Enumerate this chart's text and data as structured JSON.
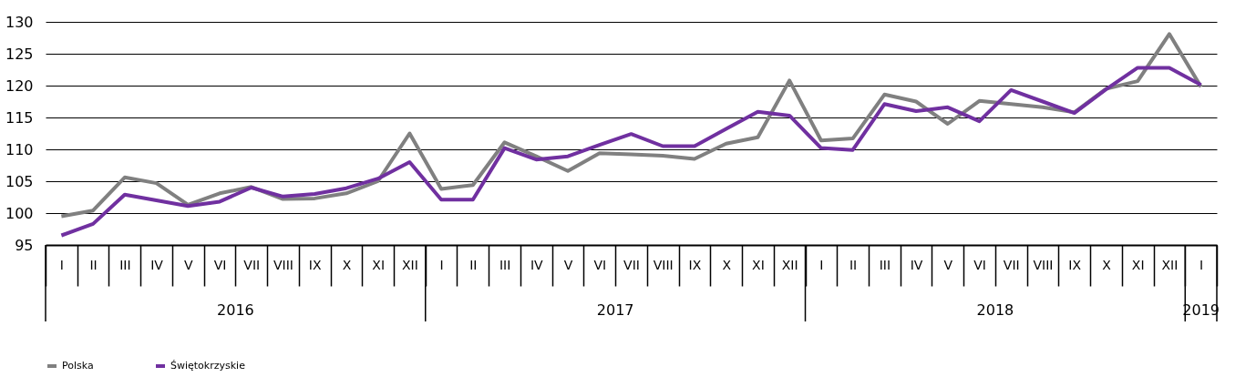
{
  "chart_data": {
    "type": "line",
    "categories": [
      "I",
      "II",
      "III",
      "IV",
      "V",
      "VI",
      "VII",
      "VIII",
      "IX",
      "X",
      "XI",
      "XII",
      "I",
      "II",
      "III",
      "IV",
      "V",
      "VI",
      "VII",
      "VIII",
      "IX",
      "X",
      "XI",
      "XII",
      "I",
      "II",
      "III",
      "IV",
      "V",
      "VI",
      "VII",
      "VIII",
      "IX",
      "X",
      "XI",
      "XII",
      "I"
    ],
    "annotations": [
      "2016",
      "2017",
      "2018",
      "2019"
    ],
    "series": [
      {
        "name": "Polska",
        "color": "#808080",
        "values": [
          99.5,
          100.4,
          105.6,
          104.7,
          101.3,
          103.1,
          104.1,
          102.2,
          102.3,
          103.1,
          105.0,
          112.5,
          103.8,
          104.4,
          111.1,
          108.9,
          106.6,
          109.4,
          109.2,
          109.0,
          108.5,
          110.9,
          111.9,
          120.8,
          111.4,
          111.7,
          118.6,
          117.5,
          114.0,
          117.6,
          117.1,
          116.6,
          115.8,
          119.5,
          120.7,
          128.1,
          119.8
        ]
      },
      {
        "name": "Świętokrzyskie",
        "color": "#7030a0",
        "values": [
          96.5,
          98.3,
          102.9,
          102.0,
          101.1,
          101.8,
          104.0,
          102.6,
          103.0,
          103.9,
          105.4,
          108.0,
          102.1,
          102.1,
          110.2,
          108.4,
          108.9,
          110.7,
          112.4,
          110.5,
          110.5,
          113.2,
          115.9,
          115.3,
          110.2,
          109.9,
          117.1,
          116.0,
          116.6,
          114.4,
          119.3,
          117.5,
          115.7,
          119.4,
          122.8,
          122.8,
          120.1
        ]
      }
    ],
    "ylim": [
      95,
      130
    ],
    "yticks": [
      95,
      100,
      105,
      110,
      115,
      120,
      125,
      130
    ],
    "grid": "y",
    "legend": "bottom",
    "line_style": "solid",
    "marker": "none"
  }
}
